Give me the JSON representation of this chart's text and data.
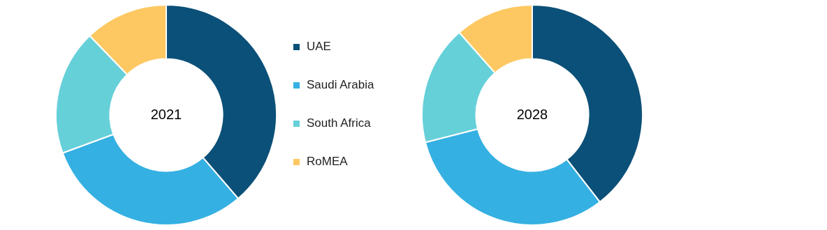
{
  "chart_data": [
    {
      "type": "donut",
      "title": "2021",
      "categories": [
        "UAE",
        "Saudi Arabia",
        "South Africa",
        "RoMEA"
      ],
      "values": [
        38.7,
        30.7,
        18.4,
        12.2
      ],
      "colors": [
        "#0b5078",
        "#35b0e2",
        "#66d0d9",
        "#fdc862"
      ],
      "legend": "right"
    },
    {
      "type": "donut",
      "title": "2028",
      "categories": [
        null,
        null,
        null,
        null
      ],
      "values": [
        39.5,
        31.5,
        17.5,
        11.5
      ],
      "colors": [
        "#0b5078",
        "#35b0e2",
        "#66d0d9",
        "#fdc862"
      ]
    }
  ]
}
